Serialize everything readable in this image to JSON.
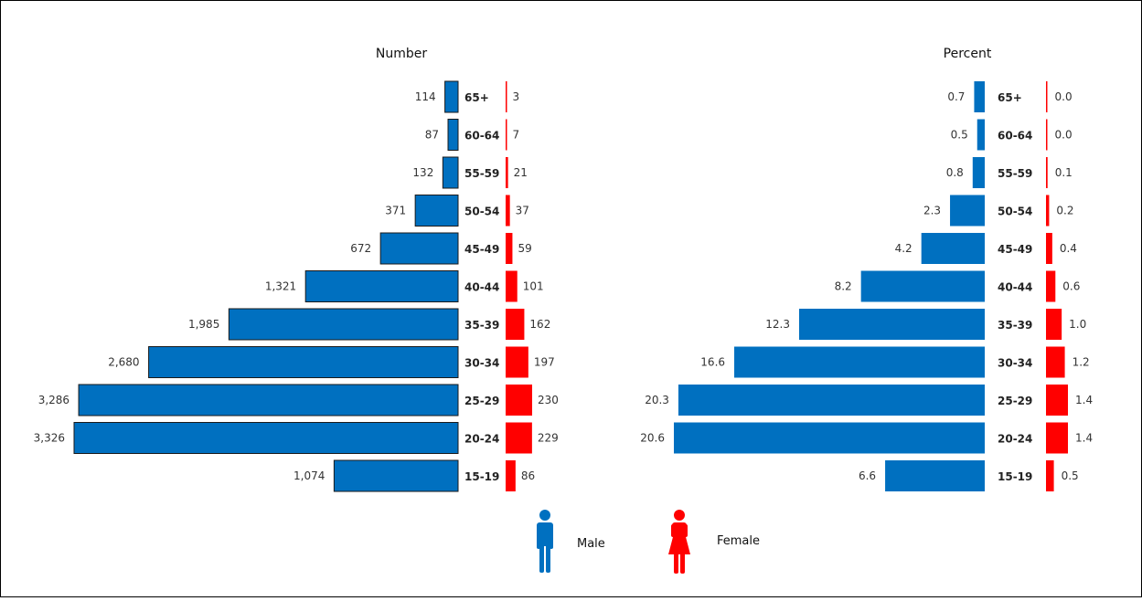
{
  "colors": {
    "male": "#0070C0",
    "female": "#FF0000"
  },
  "legend": [
    {
      "key": "male",
      "label": "Male",
      "icon": "male-person-icon"
    },
    {
      "key": "female",
      "label": "Female",
      "icon": "female-person-icon"
    }
  ],
  "chart_data": [
    {
      "type": "bar",
      "orientation": "horizontal",
      "layout": "population-pyramid",
      "title": "Number",
      "categories": [
        "65+",
        "60-64",
        "55-59",
        "50-54",
        "45-49",
        "40-44",
        "35-39",
        "30-34",
        "25-29",
        "20-24",
        "15-19"
      ],
      "series": [
        {
          "name": "Male",
          "color": "#0070C0",
          "values": [
            114,
            87,
            132,
            371,
            672,
            1321,
            1985,
            2680,
            3286,
            3326,
            1074
          ],
          "labels": [
            "114",
            "87",
            "132",
            "371",
            "672",
            "1,321",
            "1,985",
            "2,680",
            "3,286",
            "3,326",
            "1,074"
          ]
        },
        {
          "name": "Female",
          "color": "#FF0000",
          "values": [
            3,
            7,
            21,
            37,
            59,
            101,
            162,
            197,
            230,
            229,
            86
          ],
          "labels": [
            "3",
            "7",
            "21",
            "37",
            "59",
            "101",
            "162",
            "197",
            "230",
            "229",
            "86"
          ]
        }
      ],
      "grid": false
    },
    {
      "type": "bar",
      "orientation": "horizontal",
      "layout": "population-pyramid",
      "title": "Percent",
      "categories": [
        "65+",
        "60-64",
        "55-59",
        "50-54",
        "45-49",
        "40-44",
        "35-39",
        "30-34",
        "25-29",
        "20-24",
        "15-19"
      ],
      "series": [
        {
          "name": "Male",
          "color": "#0070C0",
          "values": [
            0.7,
            0.5,
            0.8,
            2.3,
            4.2,
            8.2,
            12.3,
            16.6,
            20.3,
            20.6,
            6.6
          ],
          "labels": [
            "0.7",
            "0.5",
            "0.8",
            "2.3",
            "4.2",
            "8.2",
            "12.3",
            "16.6",
            "20.3",
            "20.6",
            "6.6"
          ]
        },
        {
          "name": "Female",
          "color": "#FF0000",
          "values": [
            0.0,
            0.0,
            0.1,
            0.2,
            0.4,
            0.6,
            1.0,
            1.2,
            1.4,
            1.4,
            0.5
          ],
          "labels": [
            "0.0",
            "0.0",
            "0.1",
            "0.2",
            "0.4",
            "0.6",
            "1.0",
            "1.2",
            "1.4",
            "1.4",
            "0.5"
          ]
        }
      ],
      "grid": false
    }
  ]
}
